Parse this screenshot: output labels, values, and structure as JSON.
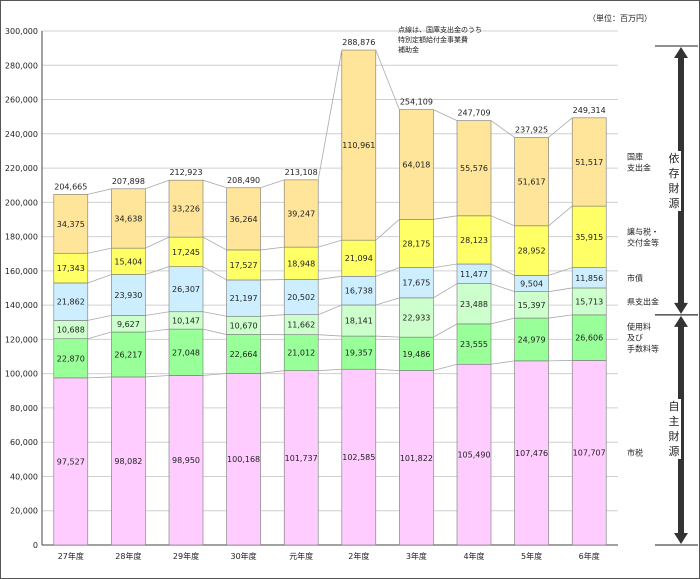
{
  "unit_label": "（単位：百万円）",
  "note": [
    "点線は、国庫支出金のうち",
    "特別定額給付金事業費",
    "補助金"
  ],
  "bracket_labels": {
    "izon": "依存財源",
    "jishu": "自主財源"
  },
  "colors": {
    "shizei": "#ffccff",
    "shiyoryo": "#99ff99",
    "kenshishutsu": "#ccffcc",
    "shisai": "#cceeff",
    "joyozei": "#ffff66",
    "kokko": "#ffe599",
    "grid": "#d0d0d0",
    "stroke": "#777777"
  },
  "chart_data": {
    "type": "bar",
    "stacked": true,
    "title": "",
    "xlabel": "",
    "ylabel": "",
    "ylim": [
      0,
      300000
    ],
    "yticks": [
      0,
      20000,
      40000,
      60000,
      80000,
      100000,
      120000,
      140000,
      160000,
      180000,
      200000,
      220000,
      240000,
      260000,
      280000,
      300000
    ],
    "grid": true,
    "categories": [
      "27年度",
      "28年度",
      "29年度",
      "30年度",
      "元年度",
      "2年度",
      "3年度",
      "4年度",
      "5年度",
      "6年度"
    ],
    "series": [
      {
        "key": "shizei",
        "name": "市税",
        "values": [
          97527,
          98082,
          98950,
          100168,
          101737,
          102585,
          101822,
          105490,
          107476,
          107707
        ]
      },
      {
        "key": "shiyoryo",
        "name": "使用料及び手数料等",
        "values": [
          22870,
          26217,
          27048,
          22664,
          21012,
          19357,
          19486,
          23555,
          24979,
          26606
        ]
      },
      {
        "key": "kenshishutsu",
        "name": "県支出金",
        "values": [
          10688,
          9627,
          10147,
          10670,
          11662,
          18141,
          22933,
          23488,
          15397,
          15713
        ]
      },
      {
        "key": "shisai",
        "name": "市債",
        "values": [
          21862,
          23930,
          26307,
          21197,
          20502,
          16738,
          17675,
          11477,
          9504,
          11856
        ]
      },
      {
        "key": "joyozei",
        "name": "譲与税・交付金等",
        "values": [
          17343,
          15404,
          17245,
          17527,
          18948,
          21094,
          28175,
          28123,
          28952,
          35915
        ]
      },
      {
        "key": "kokko",
        "name": "国庫支出金",
        "values": [
          34375,
          34638,
          33226,
          36264,
          39247,
          110961,
          64018,
          55576,
          51617,
          51517
        ]
      }
    ],
    "totals": [
      204665,
      207898,
      212923,
      208490,
      213108,
      288876,
      254109,
      247709,
      237925,
      249314
    ],
    "legend": [
      {
        "key": "kokko",
        "lines": [
          "国庫",
          "支出金"
        ]
      },
      {
        "key": "joyozei",
        "lines": [
          "譲与税・",
          "交付金等"
        ]
      },
      {
        "key": "shisai",
        "lines": [
          "市債"
        ]
      },
      {
        "key": "kenshishutsu",
        "lines": [
          "県支出金"
        ]
      },
      {
        "key": "shiyoryo",
        "lines": [
          "使用料",
          "及び",
          "手数料等"
        ]
      },
      {
        "key": "shizei",
        "lines": [
          "市税"
        ]
      }
    ],
    "legend_position": "right"
  }
}
